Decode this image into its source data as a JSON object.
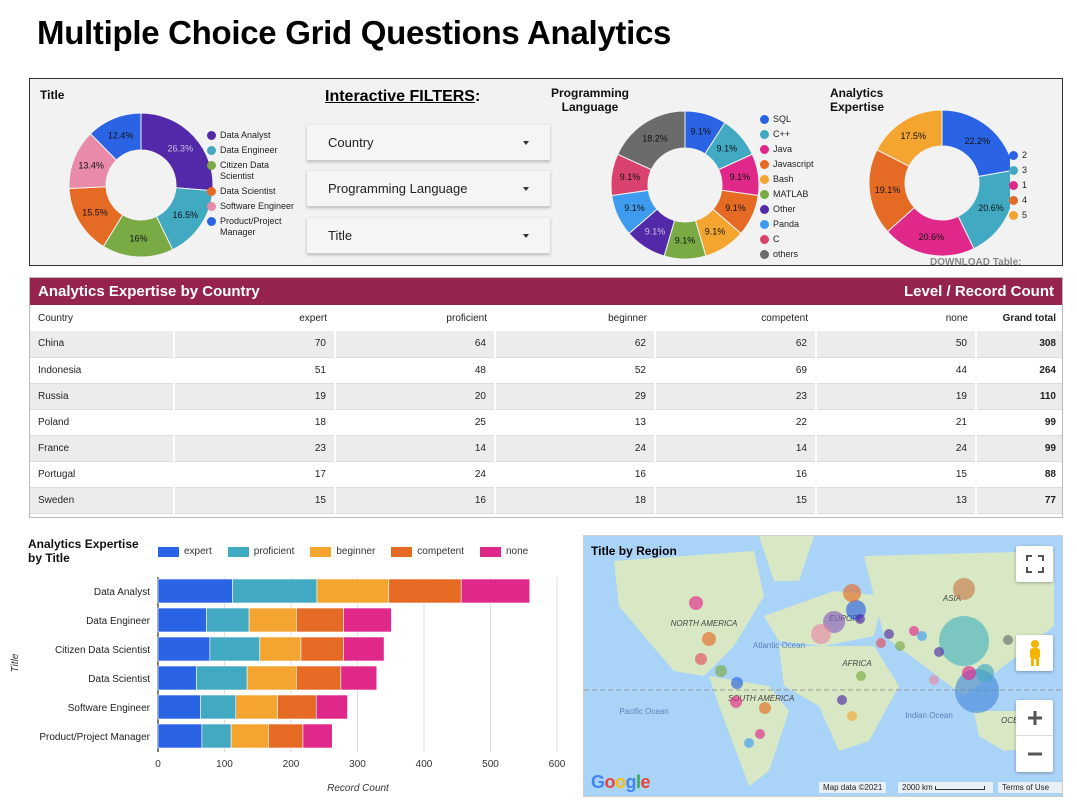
{
  "page_title": "Multiple Choice Grid Questions Analytics",
  "filters": {
    "title_prefix": "Interactive FILTERS",
    "title_suffix": ":",
    "items": [
      {
        "label": "Country"
      },
      {
        "label": "Programming Language"
      },
      {
        "label": "Title"
      }
    ]
  },
  "download_label": "DOWNLOAD Table:",
  "chart_data": [
    {
      "type": "pie",
      "id": "title-pie",
      "title": "Title",
      "donut": true,
      "labels": [
        "Data Analyst",
        "Data Engineer",
        "Citizen Data Scientist",
        "Data Scientist",
        "Software Engineer",
        "Product/Project Manager"
      ],
      "values": [
        26.3,
        16.5,
        16,
        15.5,
        13.4,
        12.4
      ],
      "value_labels": [
        "26.3%",
        "16.5%",
        "16%",
        "15.5%",
        "13.4%",
        "12.4%"
      ],
      "colors": [
        "#5229a8",
        "#42a9c3",
        "#79aa43",
        "#e56b25",
        "#e88aa8",
        "#2a63e4"
      ],
      "legend": "right"
    },
    {
      "type": "pie",
      "id": "lang-pie",
      "title": "Programming Language",
      "donut": true,
      "labels": [
        "SQL",
        "C++",
        "Java",
        "Javascript",
        "Bash",
        "MATLAB",
        "Other",
        "Panda",
        "C",
        "others"
      ],
      "values": [
        9.1,
        9.1,
        9.1,
        9.1,
        9.1,
        9.1,
        9.1,
        9.1,
        9.1,
        18.2
      ],
      "value_labels": [
        "9.1%",
        "9.1%",
        "9.1%",
        "9.1%",
        "9.1%",
        "9.1%",
        "9.1%",
        "9.1%",
        "9.1%",
        "18.2%"
      ],
      "colors": [
        "#2a63e4",
        "#42a9c3",
        "#e0288a",
        "#e56b25",
        "#f4a530",
        "#79aa43",
        "#5229a8",
        "#3d9cf0",
        "#d9426e",
        "#6b6b6b"
      ],
      "legend": "right"
    },
    {
      "type": "pie",
      "id": "expertise-pie",
      "title": "Analytics Expertise",
      "donut": true,
      "labels": [
        "2",
        "3",
        "1",
        "4",
        "5"
      ],
      "values": [
        22.2,
        20.6,
        20.6,
        19.1,
        17.5
      ],
      "value_labels": [
        "22.2%",
        "20.6%",
        "20.6%",
        "19.1%",
        "17.5%"
      ],
      "colors": [
        "#2a63e4",
        "#42a9c3",
        "#e0288a",
        "#e56b25",
        "#f4a530"
      ],
      "legend": "right"
    },
    {
      "type": "table",
      "id": "country-table",
      "title": "Analytics Expertise by Country",
      "subtitle": "Level / Record Count",
      "columns": [
        "Country",
        "expert",
        "proficient",
        "beginner",
        "competent",
        "none",
        "Grand total"
      ],
      "rows": [
        [
          "China",
          "70",
          "64",
          "62",
          "62",
          "50",
          "308"
        ],
        [
          "Indonesia",
          "51",
          "48",
          "52",
          "69",
          "44",
          "264"
        ],
        [
          "Russia",
          "19",
          "20",
          "29",
          "23",
          "19",
          "110"
        ],
        [
          "Poland",
          "18",
          "25",
          "13",
          "22",
          "21",
          "99"
        ],
        [
          "France",
          "23",
          "14",
          "24",
          "14",
          "24",
          "99"
        ],
        [
          "Portugal",
          "17",
          "24",
          "16",
          "16",
          "15",
          "88"
        ],
        [
          "Sweden",
          "15",
          "16",
          "18",
          "15",
          "13",
          "77"
        ]
      ]
    },
    {
      "type": "bar",
      "id": "title-bar",
      "orientation": "horizontal",
      "stacked": true,
      "title": "Analytics Expertise by Title",
      "xlabel": "Record Count",
      "ylabel": "Title",
      "categories": [
        "Data Analyst",
        "Data Engineer",
        "Citizen Data Scientist",
        "Data Scientist",
        "Software Engineer",
        "Product/Project Manager"
      ],
      "series": [
        {
          "name": "expert",
          "color": "#2a63e4",
          "values": [
            112,
            73,
            78,
            58,
            64,
            66
          ]
        },
        {
          "name": "proficient",
          "color": "#42a9c3",
          "values": [
            127,
            64,
            75,
            76,
            53,
            44
          ]
        },
        {
          "name": "beginner",
          "color": "#f4a530",
          "values": [
            108,
            71,
            62,
            74,
            63,
            56
          ]
        },
        {
          "name": "competent",
          "color": "#e56b25",
          "values": [
            109,
            71,
            64,
            67,
            58,
            52
          ]
        },
        {
          "name": "none",
          "color": "#e0288a",
          "values": [
            103,
            72,
            61,
            54,
            47,
            44
          ]
        }
      ],
      "xlim": [
        0,
        600
      ],
      "xticks": [
        "0",
        "100",
        "200",
        "300",
        "400",
        "500",
        "600"
      ],
      "grid": true,
      "legend": "top"
    }
  ],
  "map": {
    "title": "Title by Region",
    "labels": [
      "NORTH AMERICA",
      "SOUTH AMERICA",
      "EUROPE",
      "AFRICA",
      "ASIA",
      "OCEANIA",
      "Atlantic Ocean",
      "Pacific Ocean",
      "Indian Ocean"
    ],
    "map_data": "Map data ©2021",
    "scale": "2000 km",
    "terms": "Terms of Use",
    "logo": "Google"
  }
}
